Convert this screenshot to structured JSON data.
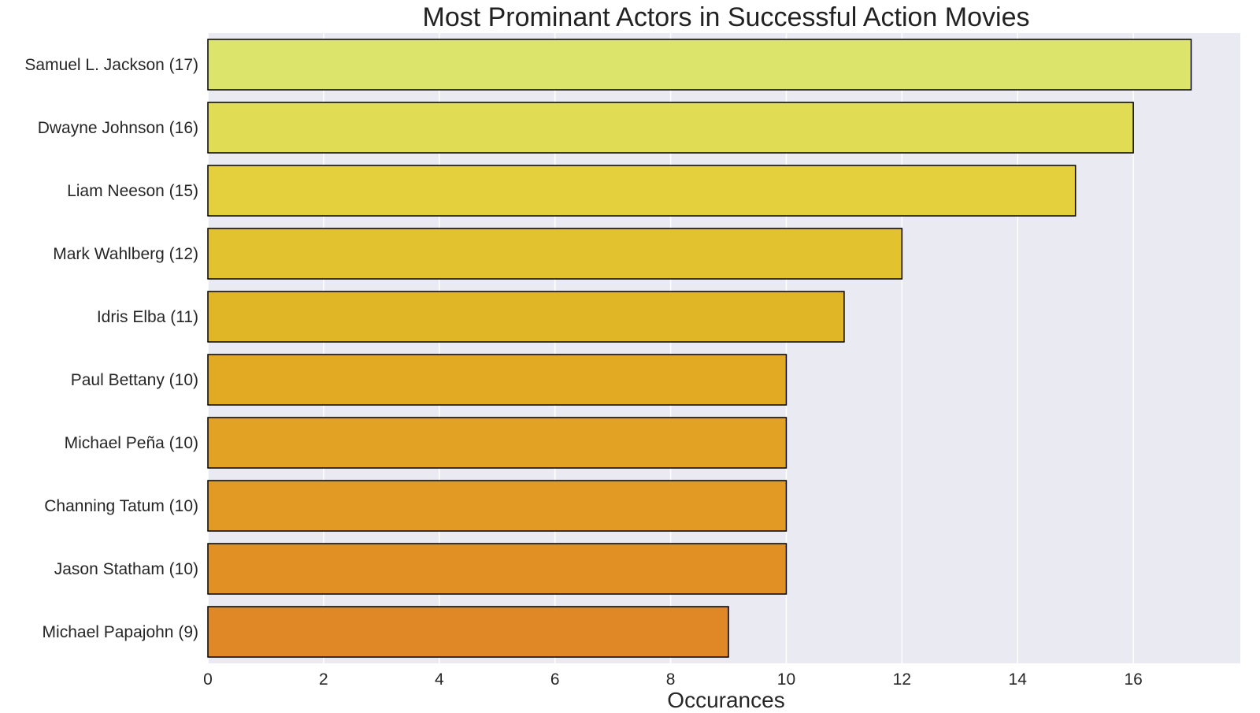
{
  "chart_data": {
    "type": "bar",
    "orientation": "horizontal",
    "title": "Most Prominant Actors in Successful Action Movies",
    "xlabel": "Occurances",
    "ylabel": "",
    "categories": [
      "Samuel L. Jackson (17)",
      "Dwayne Johnson (16)",
      "Liam Neeson (15)",
      "Mark Wahlberg (12)",
      "Idris Elba (11)",
      "Paul Bettany (10)",
      "Michael Peña (10)",
      "Channing Tatum (10)",
      "Jason Statham (10)",
      "Michael Papajohn (9)"
    ],
    "values": [
      17,
      16,
      15,
      12,
      11,
      10,
      10,
      10,
      10,
      9
    ],
    "xlim": [
      0,
      17.85
    ],
    "xticks": [
      0,
      2,
      4,
      6,
      8,
      10,
      12,
      14,
      16
    ],
    "grid": true,
    "colors": [
      "#dde46c",
      "#e0dc54",
      "#e3d03c",
      "#e2c32f",
      "#e1b626",
      "#e2aa22",
      "#e2a223",
      "#e29a24",
      "#e19124",
      "#e08825"
    ],
    "plot_background": "#eaeaf2",
    "edge_color": "#000000"
  }
}
